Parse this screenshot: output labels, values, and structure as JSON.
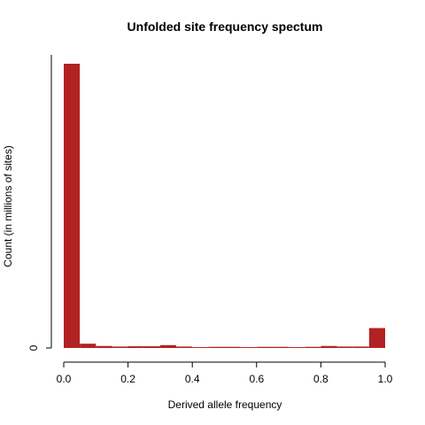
{
  "chart_data": {
    "type": "bar",
    "title": "Unfolded site frequency spectum",
    "xlabel": "Derived allele frequency",
    "ylabel": "Count (in millions of sites)",
    "bin_width": 0.05,
    "x_bins": [
      0.0,
      0.05,
      0.1,
      0.15,
      0.2,
      0.25,
      0.3,
      0.35,
      0.4,
      0.45,
      0.5,
      0.55,
      0.6,
      0.65,
      0.7,
      0.75,
      0.8,
      0.85,
      0.9,
      0.95
    ],
    "values": [
      100,
      1.5,
      0.7,
      0.5,
      0.6,
      0.6,
      1.0,
      0.5,
      0.3,
      0.4,
      0.4,
      0.3,
      0.4,
      0.4,
      0.3,
      0.4,
      0.7,
      0.5,
      0.5,
      7.0
    ],
    "xlim": [
      0,
      1
    ],
    "ylim": [
      0,
      100
    ],
    "x_ticks": [
      "0.0",
      "0.2",
      "0.4",
      "0.6",
      "0.8",
      "1.0"
    ],
    "x_tick_values": [
      0.0,
      0.2,
      0.4,
      0.6,
      0.8,
      1.0
    ],
    "y_ticks": [
      "0"
    ],
    "y_tick_values": [
      0
    ],
    "bar_color": "#b22222",
    "grid": false
  }
}
